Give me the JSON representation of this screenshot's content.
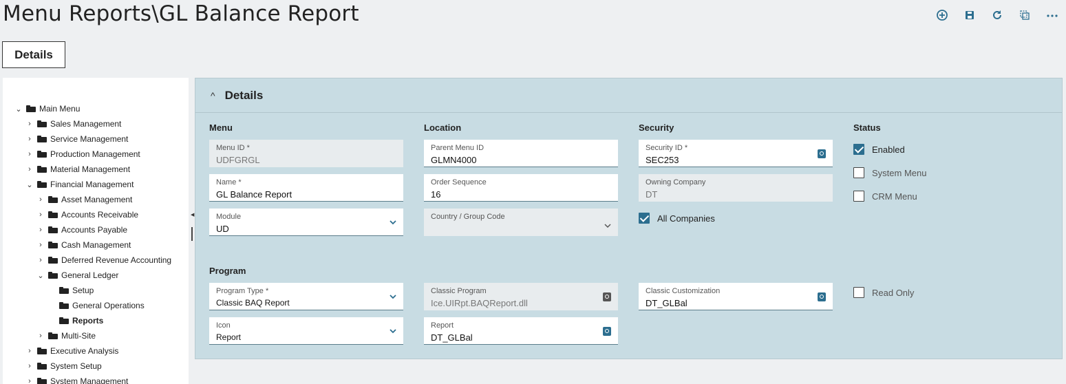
{
  "header": {
    "title": "Menu Reports\\GL Balance Report",
    "toolbar": [
      "add-icon",
      "save-icon",
      "refresh-icon",
      "copy-icon",
      "more-icon"
    ]
  },
  "tabs": {
    "details": "Details"
  },
  "tree": {
    "items": [
      {
        "label": "Main Menu",
        "chevron": "⌄"
      },
      {
        "label": "Sales Management",
        "chevron": "›"
      },
      {
        "label": "Service Management",
        "chevron": "›"
      },
      {
        "label": "Production Management",
        "chevron": "›"
      },
      {
        "label": "Material Management",
        "chevron": "›"
      },
      {
        "label": "Financial Management",
        "chevron": "⌄"
      },
      {
        "label": "Asset Management",
        "chevron": "›"
      },
      {
        "label": "Accounts Receivable",
        "chevron": "›"
      },
      {
        "label": "Accounts Payable",
        "chevron": "›"
      },
      {
        "label": "Cash Management",
        "chevron": "›"
      },
      {
        "label": "Deferred Revenue Accounting",
        "chevron": "›"
      },
      {
        "label": "General Ledger",
        "chevron": "⌄"
      },
      {
        "label": "Setup",
        "chevron": ""
      },
      {
        "label": "General Operations",
        "chevron": ""
      },
      {
        "label": "Reports",
        "chevron": ""
      },
      {
        "label": "Multi-Site",
        "chevron": "›"
      },
      {
        "label": "Executive Analysis",
        "chevron": "›"
      },
      {
        "label": "System Setup",
        "chevron": "›"
      },
      {
        "label": "System Management",
        "chevron": "›"
      }
    ]
  },
  "panel": {
    "title": "Details",
    "caret": "^",
    "sections": {
      "menu": "Menu",
      "location": "Location",
      "security": "Security",
      "status": "Status",
      "program": "Program"
    },
    "fields": {
      "menu_id": {
        "label": "Menu ID *",
        "value": "UDFGRGL"
      },
      "name": {
        "label": "Name *",
        "value": "GL Balance Report"
      },
      "module": {
        "label": "Module",
        "value": "UD"
      },
      "parent_menu_id": {
        "label": "Parent Menu ID",
        "value": "GLMN4000"
      },
      "order_sequence": {
        "label": "Order Sequence",
        "value": "16"
      },
      "country_group": {
        "label": "Country / Group Code",
        "value": ""
      },
      "security_id": {
        "label": "Security ID *",
        "value": "SEC253"
      },
      "owning_company": {
        "label": "Owning Company",
        "value": "DT"
      },
      "program_type": {
        "label": "Program Type *",
        "value": "Classic BAQ Report"
      },
      "icon": {
        "label": "Icon",
        "value": "Report"
      },
      "classic_program": {
        "label": "Classic Program",
        "value": "Ice.UIRpt.BAQReport.dll"
      },
      "report": {
        "label": "Report",
        "value": "DT_GLBal"
      },
      "classic_customization": {
        "label": "Classic Customization",
        "value": "DT_GLBal"
      }
    },
    "checks": {
      "enabled": {
        "label": "Enabled",
        "checked": true
      },
      "system_menu": {
        "label": "System Menu",
        "checked": false
      },
      "crm_menu": {
        "label": "CRM Menu",
        "checked": false
      },
      "all_companies": {
        "label": "All Companies",
        "checked": true
      },
      "read_only": {
        "label": "Read Only",
        "checked": false
      }
    }
  },
  "colors": {
    "accent": "#2c6e8f",
    "panel_bg": "#c8dce3",
    "page_bg": "#eef0f2"
  }
}
